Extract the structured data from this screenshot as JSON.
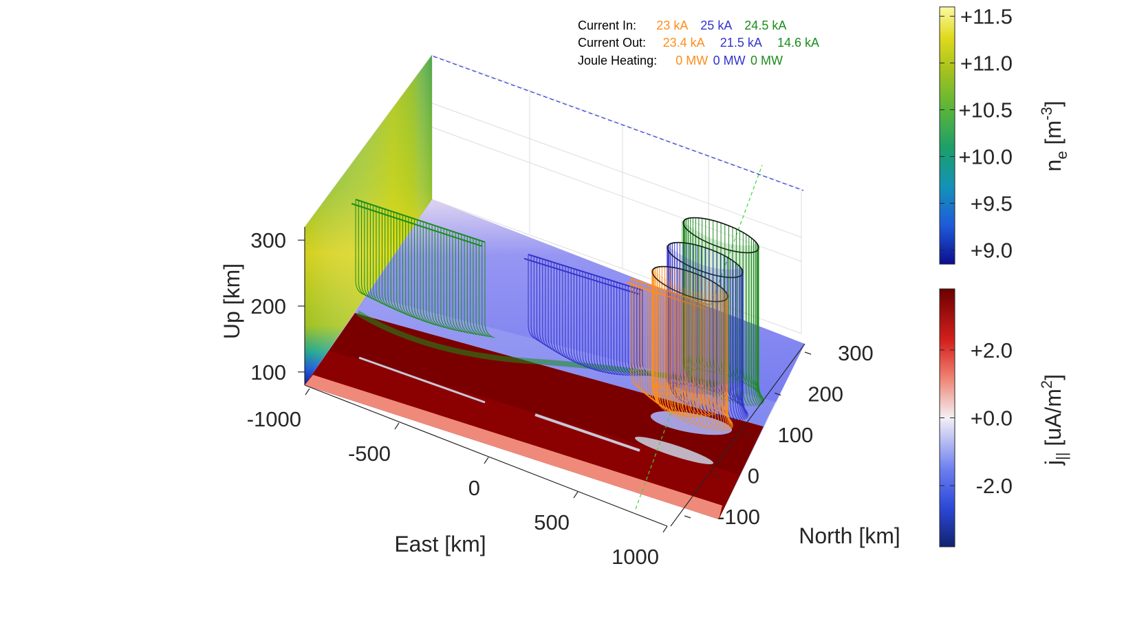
{
  "chart_data": {
    "type": "3d-surface-fluxtubes",
    "axes": {
      "x": {
        "label": "East [km]",
        "ticks": [
          "-1000",
          "-500",
          "0",
          "500",
          "1000"
        ],
        "range": [
          -1000,
          1000
        ]
      },
      "y": {
        "label": "North [km]",
        "ticks": [
          "-100",
          "0",
          "100",
          "200",
          "300"
        ],
        "range": [
          -100,
          300
        ]
      },
      "z": {
        "label": "Up [km]",
        "ticks": [
          "100",
          "200",
          "300"
        ],
        "range": [
          80,
          320
        ]
      }
    },
    "legend": {
      "rows": [
        {
          "label": "Current In:",
          "values": [
            "23 kA",
            "25 kA",
            "24.5 kA"
          ]
        },
        {
          "label": "Current Out:",
          "values": [
            "23.4 kA",
            "21.5 kA",
            "14.6 kA"
          ]
        },
        {
          "label": "Joule Heating:",
          "values": [
            "0 MW",
            "0 MW",
            "0 MW"
          ]
        }
      ],
      "series_colors": [
        "#ff8c1a",
        "#3333cc",
        "#1a8c1a"
      ],
      "placement": "top"
    },
    "colorbars": [
      {
        "label_base": "n",
        "label_sub": "e",
        "label_unit": "[m",
        "label_sup": "-3",
        "label_close": "]",
        "ticks": [
          "+11.5",
          "+11.0",
          "+10.5",
          "+10.0",
          "+9.5",
          "+9.0"
        ],
        "values": [
          11.5,
          11.0,
          10.5,
          10.0,
          9.5,
          9.0
        ],
        "range": [
          8.85,
          11.6
        ],
        "colormap": "parula"
      },
      {
        "label_base": "j",
        "label_sub": "||",
        "label_unit": "[uA/m",
        "label_sup": "2",
        "label_close": "]",
        "ticks": [
          "+2.0",
          "+0.0",
          "-2.0"
        ],
        "values": [
          2.0,
          0.0,
          -2.0
        ],
        "range": [
          -3.8,
          3.8
        ],
        "colormap": "blue-white-red"
      }
    ]
  }
}
